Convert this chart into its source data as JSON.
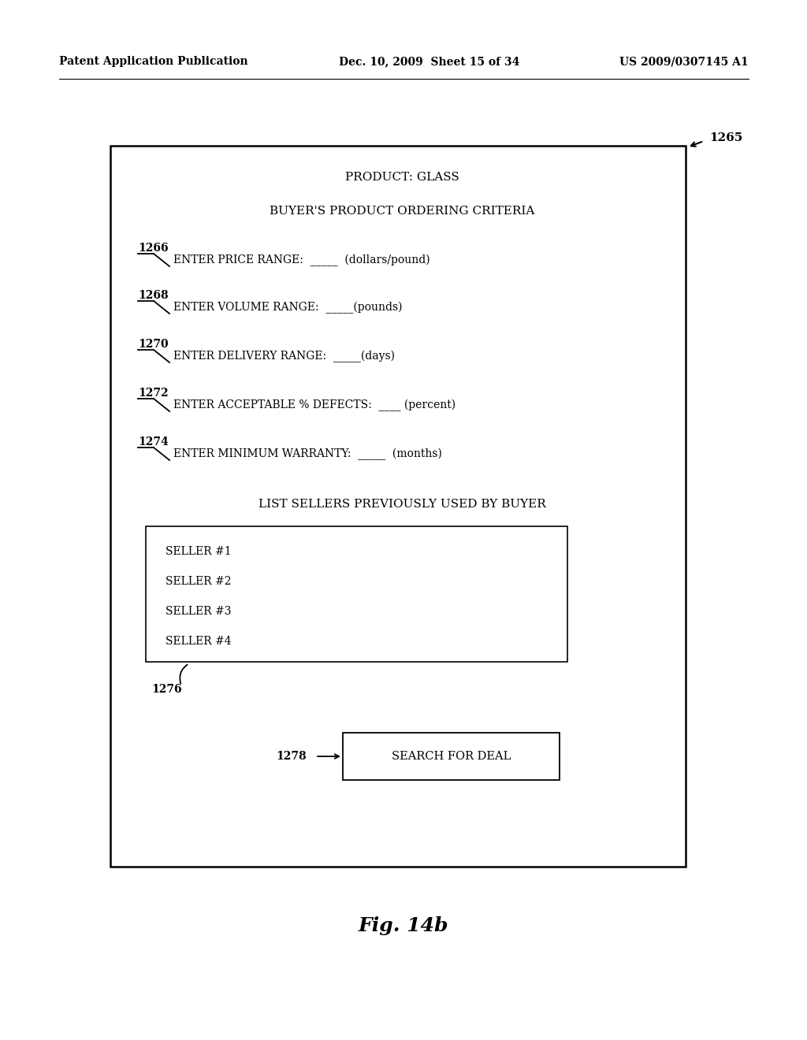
{
  "bg_color": "#ffffff",
  "header_left": "Patent Application Publication",
  "header_mid": "Dec. 10, 2009  Sheet 15 of 34",
  "header_right": "US 2009/0307145 A1",
  "fig_label": "Fig. 14b",
  "diagram_label": "1265",
  "title1": "PRODUCT: GLASS",
  "title2": "BUYER'S PRODUCT ORDERING CRITERIA",
  "fields": [
    {
      "label": "1266",
      "text": "ENTER PRICE RANGE:  _____  (dollars/pound)"
    },
    {
      "label": "1268",
      "text": "ENTER VOLUME RANGE:  _____(pounds)"
    },
    {
      "label": "1270",
      "text": "ENTER DELIVERY RANGE:  _____(days)"
    },
    {
      "label": "1272",
      "text": "ENTER ACCEPTABLE % DEFECTS:  ____ (percent)"
    },
    {
      "label": "1274",
      "text": "ENTER MINIMUM WARRANTY:  _____  (months)"
    }
  ],
  "sellers_title": "LIST SELLERS PREVIOUSLY USED BY BUYER",
  "sellers": [
    "SELLER #1",
    "SELLER #2",
    "SELLER #3",
    "SELLER #4"
  ],
  "sellers_label": "1276",
  "button_label": "1278",
  "button_text": "SEARCH FOR DEAL"
}
